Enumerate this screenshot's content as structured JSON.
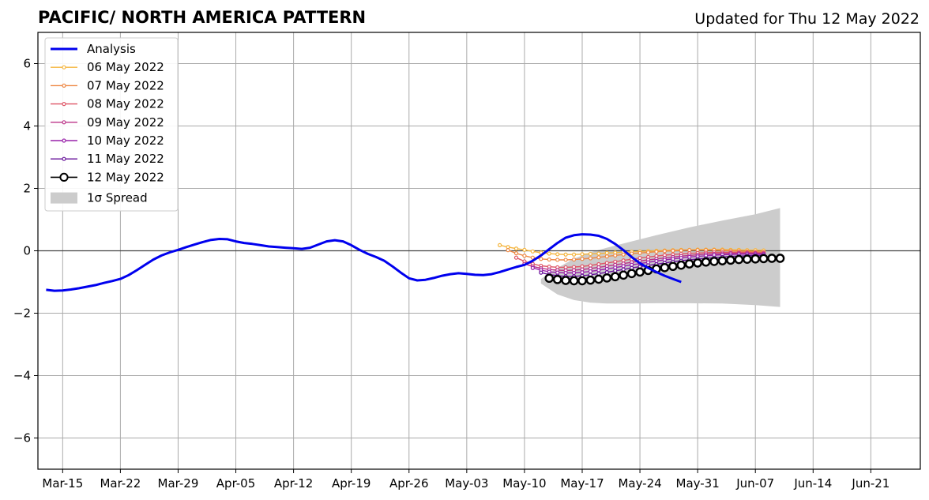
{
  "header": {
    "title": "PACIFIC/ NORTH AMERICA PATTERN",
    "updated": "Updated for Thu 12 May 2022"
  },
  "chart_data": {
    "type": "line",
    "title": "PACIFIC/ NORTH AMERICA PATTERN",
    "xlabel": "",
    "ylabel": "",
    "x_range": [
      "2022-03-12",
      "2022-06-27"
    ],
    "ylim": [
      -7,
      7
    ],
    "yticks": [
      -6,
      -4,
      -2,
      0,
      2,
      4,
      6
    ],
    "ytick_labels": [
      "−6",
      "−4",
      "−2",
      "0",
      "2",
      "4",
      "6"
    ],
    "xticks": [
      "2022-03-15",
      "2022-03-22",
      "2022-03-29",
      "2022-04-05",
      "2022-04-12",
      "2022-04-19",
      "2022-04-26",
      "2022-05-03",
      "2022-05-10",
      "2022-05-17",
      "2022-05-24",
      "2022-05-31",
      "2022-06-07",
      "2022-06-14",
      "2022-06-21"
    ],
    "xtick_labels": [
      "Mar-15",
      "Mar-22",
      "Mar-29",
      "Apr-05",
      "Apr-12",
      "Apr-19",
      "Apr-26",
      "May-03",
      "May-10",
      "May-17",
      "May-24",
      "May-31",
      "Jun-07",
      "Jun-14",
      "Jun-21"
    ],
    "grid": true,
    "legend_position": "top-left",
    "analysis": {
      "name": "Analysis",
      "color": "#0000ee",
      "start_date": "2022-03-13",
      "values": [
        -1.25,
        -1.28,
        -1.27,
        -1.24,
        -1.2,
        -1.15,
        -1.1,
        -1.03,
        -0.97,
        -0.9,
        -0.78,
        -0.62,
        -0.45,
        -0.28,
        -0.15,
        -0.05,
        0.03,
        0.12,
        0.2,
        0.28,
        0.35,
        0.38,
        0.37,
        0.3,
        0.25,
        0.22,
        0.18,
        0.14,
        0.12,
        0.1,
        0.08,
        0.06,
        0.1,
        0.2,
        0.3,
        0.34,
        0.3,
        0.18,
        0.03,
        -0.1,
        -0.2,
        -0.32,
        -0.5,
        -0.7,
        -0.88,
        -0.95,
        -0.93,
        -0.87,
        -0.8,
        -0.75,
        -0.72,
        -0.74,
        -0.77,
        -0.78,
        -0.75,
        -0.68,
        -0.6,
        -0.52,
        -0.45,
        -0.32,
        -0.15,
        0.05,
        0.25,
        0.42,
        0.5,
        0.53,
        0.52,
        0.48,
        0.38,
        0.22,
        0.02,
        -0.2,
        -0.4,
        -0.55,
        -0.68,
        -0.8,
        -0.9,
        -1.0
      ]
    },
    "forecasts": [
      {
        "name": "06 May 2022",
        "color": "#f4b43c",
        "start_date": "2022-05-07",
        "values": [
          0.18,
          0.12,
          0.07,
          0.03,
          -0.02,
          -0.06,
          -0.09,
          -0.11,
          -0.12,
          -0.12,
          -0.11,
          -0.1,
          -0.09,
          -0.07,
          -0.06,
          -0.04,
          -0.03,
          -0.02,
          -0.01,
          0.0,
          0.01,
          0.02,
          0.03,
          0.03,
          0.04,
          0.04,
          0.04,
          0.04,
          0.03,
          0.03,
          0.02,
          0.02,
          0.01
        ]
      },
      {
        "name": "07 May 2022",
        "color": "#ee8844",
        "start_date": "2022-05-08",
        "values": [
          0.02,
          -0.08,
          -0.16,
          -0.22,
          -0.26,
          -0.28,
          -0.29,
          -0.29,
          -0.28,
          -0.26,
          -0.24,
          -0.21,
          -0.18,
          -0.15,
          -0.12,
          -0.09,
          -0.07,
          -0.05,
          -0.03,
          -0.01,
          0.0,
          0.01,
          0.02,
          0.02,
          0.02,
          0.02,
          0.01,
          0.0,
          -0.01,
          -0.02,
          -0.03,
          -0.04
        ]
      },
      {
        "name": "08 May 2022",
        "color": "#de5566",
        "start_date": "2022-05-09",
        "values": [
          -0.22,
          -0.34,
          -0.42,
          -0.48,
          -0.51,
          -0.53,
          -0.53,
          -0.52,
          -0.5,
          -0.47,
          -0.43,
          -0.39,
          -0.35,
          -0.31,
          -0.27,
          -0.23,
          -0.2,
          -0.17,
          -0.14,
          -0.12,
          -0.1,
          -0.08,
          -0.07,
          -0.06,
          -0.05,
          -0.05,
          -0.05,
          -0.05,
          -0.05,
          -0.06,
          -0.06
        ]
      },
      {
        "name": "09 May 2022",
        "color": "#bb3388",
        "start_date": "2022-05-10",
        "values": [
          -0.42,
          -0.5,
          -0.56,
          -0.6,
          -0.62,
          -0.63,
          -0.62,
          -0.6,
          -0.57,
          -0.53,
          -0.49,
          -0.45,
          -0.41,
          -0.37,
          -0.33,
          -0.29,
          -0.26,
          -0.23,
          -0.2,
          -0.17,
          -0.15,
          -0.13,
          -0.11,
          -0.1,
          -0.09,
          -0.08,
          -0.08,
          -0.08,
          -0.08,
          -0.09
        ]
      },
      {
        "name": "10 May 2022",
        "color": "#9922aa",
        "start_date": "2022-05-11",
        "values": [
          -0.55,
          -0.62,
          -0.67,
          -0.7,
          -0.71,
          -0.71,
          -0.69,
          -0.66,
          -0.62,
          -0.58,
          -0.54,
          -0.49,
          -0.45,
          -0.41,
          -0.37,
          -0.33,
          -0.29,
          -0.26,
          -0.23,
          -0.2,
          -0.18,
          -0.16,
          -0.14,
          -0.13,
          -0.12,
          -0.11,
          -0.11,
          -0.11,
          -0.11
        ]
      },
      {
        "name": "11 May 2022",
        "color": "#661199",
        "start_date": "2022-05-12",
        "values": [
          -0.7,
          -0.76,
          -0.8,
          -0.82,
          -0.82,
          -0.8,
          -0.77,
          -0.73,
          -0.69,
          -0.64,
          -0.6,
          -0.55,
          -0.51,
          -0.47,
          -0.43,
          -0.39,
          -0.35,
          -0.32,
          -0.29,
          -0.26,
          -0.24,
          -0.22,
          -0.2,
          -0.18,
          -0.17,
          -0.16,
          -0.15,
          -0.15
        ]
      },
      {
        "name": "12 May 2022",
        "color": "#000000",
        "start_date": "2022-05-13",
        "values": [
          -0.88,
          -0.92,
          -0.95,
          -0.96,
          -0.96,
          -0.94,
          -0.91,
          -0.87,
          -0.83,
          -0.78,
          -0.73,
          -0.68,
          -0.63,
          -0.58,
          -0.54,
          -0.5,
          -0.46,
          -0.42,
          -0.39,
          -0.36,
          -0.34,
          -0.32,
          -0.3,
          -0.28,
          -0.27,
          -0.26,
          -0.25,
          -0.24,
          -0.24
        ]
      }
    ],
    "spread": {
      "name": "1σ Spread",
      "color": "#cccccc",
      "dates": [
        "2022-05-12",
        "2022-05-14",
        "2022-05-16",
        "2022-05-18",
        "2022-05-20",
        "2022-05-23",
        "2022-05-26",
        "2022-05-30",
        "2022-06-03",
        "2022-06-07",
        "2022-06-10"
      ],
      "upper": [
        -0.9,
        -0.55,
        -0.25,
        -0.05,
        0.1,
        0.3,
        0.5,
        0.75,
        0.97,
        1.17,
        1.37
      ],
      "lower": [
        -1.05,
        -1.4,
        -1.58,
        -1.66,
        -1.69,
        -1.69,
        -1.68,
        -1.68,
        -1.69,
        -1.74,
        -1.8
      ]
    }
  }
}
